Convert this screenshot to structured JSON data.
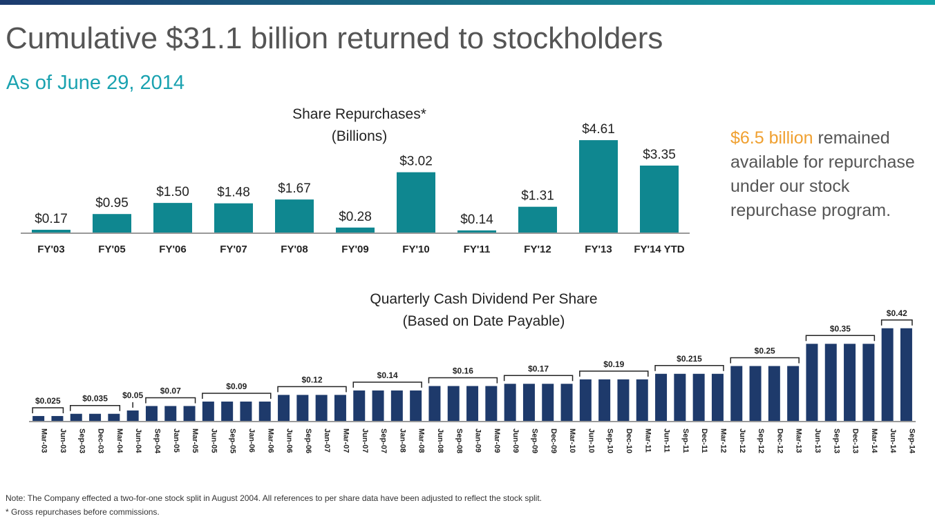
{
  "header": {
    "title": "Cumulative $31.1 billion returned to stockholders",
    "subtitle": "As of June 29, 2014"
  },
  "sidenote": {
    "highlight": "$6.5 billion",
    "text": " remained available for repurchase under our stock repurchase program."
  },
  "footnotes": {
    "note": "Note:  The Company effected a two-for-one stock split in August 2004. All references to per share data have been adjusted to reflect the stock split.",
    "asterisk": "* Gross repurchases before commissions."
  },
  "colors": {
    "teal": "#0f8790",
    "navy": "#1e3a6b",
    "accent": "#f0a030",
    "subtitle": "#1aa2b0",
    "text": "#555555"
  },
  "chart_data": [
    {
      "type": "bar",
      "title": "Share Repurchases*",
      "subtitle": "(Billions)",
      "categories": [
        "FY'03",
        "FY'05",
        "FY'06",
        "FY'07",
        "FY'08",
        "FY'09",
        "FY'10",
        "FY'11",
        "FY'12",
        "FY'13",
        "FY'14 YTD"
      ],
      "values": [
        0.17,
        0.95,
        1.5,
        1.48,
        1.67,
        0.28,
        3.02,
        0.14,
        1.31,
        4.61,
        3.35
      ],
      "labels": [
        "$0.17",
        "$0.95",
        "$1.50",
        "$1.48",
        "$1.67",
        "$0.28",
        "$3.02",
        "$0.14",
        "$1.31",
        "$4.61",
        "$3.35"
      ],
      "ylim": [
        0,
        5.4
      ],
      "grid": false
    },
    {
      "type": "bar",
      "title": "Quarterly Cash Dividend Per Share",
      "subtitle": "(Based on Date Payable)",
      "categories": [
        "Mar-03",
        "Jun-03",
        "Sep-03",
        "Dec-03",
        "Mar-04",
        "Jun-04",
        "Sep-04",
        "Jan-05",
        "Mar-05",
        "Jun-05",
        "Sep-05",
        "Jan-06",
        "Mar-06",
        "Jun-06",
        "Sep-06",
        "Jan-07",
        "Mar-07",
        "Jun-07",
        "Sep-07",
        "Jan-08",
        "Mar-08",
        "Jun-08",
        "Sep-08",
        "Jan-09",
        "Mar-09",
        "Jun-09",
        "Sep-09",
        "Dec-09",
        "Mar-10",
        "Jun-10",
        "Sep-10",
        "Dec-10",
        "Mar-11",
        "Jun-11",
        "Sep-11",
        "Dec-11",
        "Mar-12",
        "Jun-12",
        "Sep-12",
        "Dec-12",
        "Mar-13",
        "Jun-13",
        "Sep-13",
        "Dec-13",
        "Mar-14",
        "Jun-14",
        "Sep-14"
      ],
      "values": [
        0.025,
        0.025,
        0.035,
        0.035,
        0.035,
        0.05,
        0.07,
        0.07,
        0.07,
        0.09,
        0.09,
        0.09,
        0.09,
        0.12,
        0.12,
        0.12,
        0.12,
        0.14,
        0.14,
        0.14,
        0.14,
        0.16,
        0.16,
        0.16,
        0.16,
        0.17,
        0.17,
        0.17,
        0.17,
        0.19,
        0.19,
        0.19,
        0.19,
        0.215,
        0.215,
        0.215,
        0.215,
        0.25,
        0.25,
        0.25,
        0.25,
        0.35,
        0.35,
        0.35,
        0.35,
        0.42,
        0.42
      ],
      "groups": [
        {
          "label": "$0.025",
          "start": 0,
          "end": 1
        },
        {
          "label": "$0.035",
          "start": 2,
          "end": 4
        },
        {
          "label": "$0.05",
          "start": 5,
          "end": 5
        },
        {
          "label": "$0.07",
          "start": 6,
          "end": 8
        },
        {
          "label": "$0.09",
          "start": 9,
          "end": 12
        },
        {
          "label": "$0.12",
          "start": 13,
          "end": 16
        },
        {
          "label": "$0.14",
          "start": 17,
          "end": 20
        },
        {
          "label": "$0.16",
          "start": 21,
          "end": 24
        },
        {
          "label": "$0.17",
          "start": 25,
          "end": 28
        },
        {
          "label": "$0.19",
          "start": 29,
          "end": 32
        },
        {
          "label": "$0.215",
          "start": 33,
          "end": 36
        },
        {
          "label": "$0.25",
          "start": 37,
          "end": 40
        },
        {
          "label": "$0.35",
          "start": 41,
          "end": 44
        },
        {
          "label": "$0.42",
          "start": 45,
          "end": 46
        }
      ],
      "ylim": [
        0,
        0.5
      ],
      "grid": false
    }
  ]
}
